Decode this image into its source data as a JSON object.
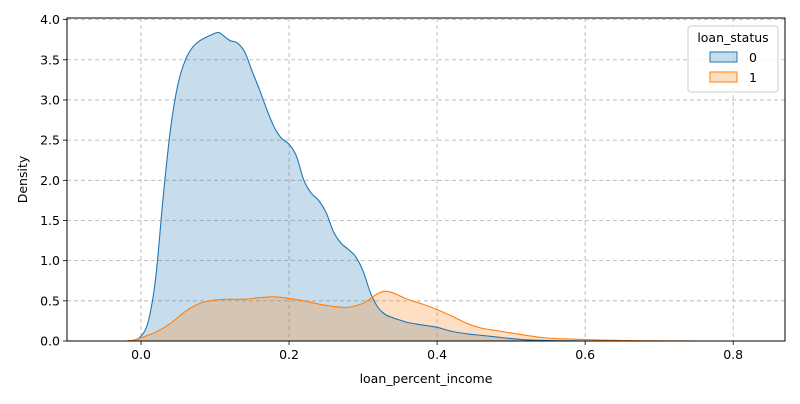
{
  "chart_data": {
    "type": "area",
    "xlabel": "loan_percent_income",
    "ylabel": "Density",
    "xlim": [
      -0.1,
      0.87
    ],
    "ylim": [
      0,
      4.02
    ],
    "x_ticks": [
      0.0,
      0.2,
      0.4,
      0.6,
      0.8
    ],
    "x_tick_labels": [
      "0.0",
      "0.2",
      "0.4",
      "0.6",
      "0.8"
    ],
    "y_ticks": [
      0.0,
      0.5,
      1.0,
      1.5,
      2.0,
      2.5,
      3.0,
      3.5,
      4.0
    ],
    "y_tick_labels": [
      "0.0",
      "0.5",
      "1.0",
      "1.5",
      "2.0",
      "2.5",
      "3.0",
      "3.5",
      "4.0"
    ],
    "grid": true,
    "legend": {
      "title": "loan_status",
      "placement": "top-right"
    },
    "series": [
      {
        "name": "0",
        "color": "#1f77b4",
        "points": [
          [
            -0.02,
            0.0
          ],
          [
            -0.01,
            0.01
          ],
          [
            0.0,
            0.06
          ],
          [
            0.01,
            0.25
          ],
          [
            0.02,
            0.8
          ],
          [
            0.03,
            1.8
          ],
          [
            0.04,
            2.65
          ],
          [
            0.05,
            3.2
          ],
          [
            0.06,
            3.5
          ],
          [
            0.07,
            3.66
          ],
          [
            0.08,
            3.74
          ],
          [
            0.09,
            3.79
          ],
          [
            0.1,
            3.83
          ],
          [
            0.105,
            3.84
          ],
          [
            0.11,
            3.81
          ],
          [
            0.12,
            3.74
          ],
          [
            0.13,
            3.71
          ],
          [
            0.14,
            3.6
          ],
          [
            0.15,
            3.36
          ],
          [
            0.16,
            3.13
          ],
          [
            0.17,
            2.88
          ],
          [
            0.18,
            2.66
          ],
          [
            0.19,
            2.52
          ],
          [
            0.2,
            2.45
          ],
          [
            0.21,
            2.3
          ],
          [
            0.22,
            2.0
          ],
          [
            0.23,
            1.84
          ],
          [
            0.24,
            1.75
          ],
          [
            0.25,
            1.6
          ],
          [
            0.26,
            1.36
          ],
          [
            0.27,
            1.22
          ],
          [
            0.28,
            1.14
          ],
          [
            0.29,
            1.05
          ],
          [
            0.3,
            0.87
          ],
          [
            0.31,
            0.6
          ],
          [
            0.32,
            0.42
          ],
          [
            0.33,
            0.33
          ],
          [
            0.34,
            0.29
          ],
          [
            0.35,
            0.26
          ],
          [
            0.36,
            0.23
          ],
          [
            0.38,
            0.2
          ],
          [
            0.4,
            0.17
          ],
          [
            0.42,
            0.12
          ],
          [
            0.44,
            0.09
          ],
          [
            0.46,
            0.07
          ],
          [
            0.48,
            0.05
          ],
          [
            0.5,
            0.03
          ],
          [
            0.52,
            0.015
          ],
          [
            0.54,
            0.008
          ],
          [
            0.57,
            0.003
          ],
          [
            0.6,
            0.0
          ]
        ]
      },
      {
        "name": "1",
        "color": "#ff7f0e",
        "points": [
          [
            -0.02,
            0.0
          ],
          [
            -0.01,
            0.01
          ],
          [
            0.0,
            0.04
          ],
          [
            0.02,
            0.11
          ],
          [
            0.04,
            0.22
          ],
          [
            0.06,
            0.37
          ],
          [
            0.08,
            0.47
          ],
          [
            0.1,
            0.51
          ],
          [
            0.12,
            0.52
          ],
          [
            0.14,
            0.52
          ],
          [
            0.16,
            0.54
          ],
          [
            0.18,
            0.55
          ],
          [
            0.2,
            0.53
          ],
          [
            0.22,
            0.5
          ],
          [
            0.24,
            0.46
          ],
          [
            0.26,
            0.43
          ],
          [
            0.28,
            0.42
          ],
          [
            0.3,
            0.47
          ],
          [
            0.31,
            0.53
          ],
          [
            0.32,
            0.59
          ],
          [
            0.33,
            0.62
          ],
          [
            0.34,
            0.6
          ],
          [
            0.35,
            0.56
          ],
          [
            0.36,
            0.52
          ],
          [
            0.38,
            0.46
          ],
          [
            0.4,
            0.39
          ],
          [
            0.42,
            0.31
          ],
          [
            0.44,
            0.22
          ],
          [
            0.46,
            0.16
          ],
          [
            0.48,
            0.13
          ],
          [
            0.5,
            0.1
          ],
          [
            0.52,
            0.07
          ],
          [
            0.54,
            0.045
          ],
          [
            0.56,
            0.03
          ],
          [
            0.58,
            0.025
          ],
          [
            0.6,
            0.018
          ],
          [
            0.62,
            0.012
          ],
          [
            0.64,
            0.008
          ],
          [
            0.66,
            0.005
          ],
          [
            0.68,
            0.003
          ],
          [
            0.7,
            0.002
          ],
          [
            0.72,
            0.001
          ],
          [
            0.75,
            0.0
          ]
        ]
      }
    ]
  }
}
